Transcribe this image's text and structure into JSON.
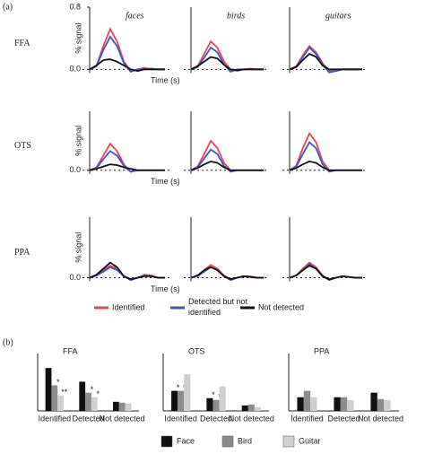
{
  "figure_labels": [
    "(a)",
    "(b)"
  ],
  "chart_data": [
    {
      "type": "line",
      "title": "faces",
      "row_label": "FFA",
      "ylabel": "% signal",
      "xlabel": "Time (s)",
      "ylim": [
        -0.1,
        0.8
      ],
      "yticks": [
        {
          "value": 0,
          "label": "0.0"
        },
        {
          "value": 0.8,
          "label": "0.8"
        }
      ],
      "series": [
        {
          "name": "Identified",
          "color": "#e8474f",
          "values": [
            0,
            0.05,
            0.3,
            0.52,
            0.36,
            0.1,
            -0.02,
            0,
            0.02,
            0,
            0,
            0
          ]
        },
        {
          "name": "Detected but not identified",
          "color": "#3a56c8",
          "values": [
            0,
            0.04,
            0.25,
            0.42,
            0.3,
            0.08,
            -0.03,
            0,
            0,
            0.01,
            0,
            0
          ]
        },
        {
          "name": "Not detected",
          "color": "#111111",
          "values": [
            0,
            0.05,
            0.12,
            0.13,
            0.1,
            0.05,
            0,
            -0.02,
            0,
            0,
            0,
            0
          ]
        }
      ]
    },
    {
      "type": "line",
      "title": "birds",
      "ylim": [
        -0.1,
        0.8
      ],
      "series": [
        {
          "color": "#e8474f",
          "values": [
            0,
            0.04,
            0.2,
            0.36,
            0.28,
            0.1,
            0,
            -0.02,
            0,
            0.01,
            0,
            0
          ]
        },
        {
          "color": "#3a56c8",
          "values": [
            0,
            0.03,
            0.15,
            0.28,
            0.22,
            0.06,
            -0.03,
            0,
            0,
            0,
            0,
            0
          ]
        },
        {
          "color": "#111111",
          "values": [
            0,
            0.04,
            0.1,
            0.16,
            0.14,
            0.06,
            0,
            -0.01,
            0,
            0,
            0,
            0
          ]
        }
      ]
    },
    {
      "type": "line",
      "title": "guitars",
      "ylim": [
        -0.1,
        0.8
      ],
      "series": [
        {
          "color": "#e8474f",
          "values": [
            0,
            0.04,
            0.18,
            0.3,
            0.22,
            0.08,
            -0.02,
            -0.02,
            0,
            0,
            0,
            0
          ]
        },
        {
          "color": "#3a56c8",
          "values": [
            0,
            0.03,
            0.16,
            0.28,
            0.2,
            0.06,
            -0.04,
            -0.02,
            0,
            0,
            0,
            0
          ]
        },
        {
          "color": "#111111",
          "values": [
            0,
            0.03,
            0.12,
            0.2,
            0.16,
            0.05,
            0,
            0,
            0,
            0,
            0,
            0
          ]
        }
      ]
    },
    {
      "type": "line",
      "row_label": "OTS",
      "ylabel": "% signal",
      "xlabel": "Time (s)",
      "ylim": [
        -0.1,
        0.8
      ],
      "yticks": [
        {
          "value": 0,
          "label": "0.0"
        }
      ],
      "series": [
        {
          "color": "#e8474f",
          "values": [
            0,
            0.04,
            0.2,
            0.36,
            0.26,
            0.08,
            -0.02,
            0,
            0,
            0,
            0,
            0
          ]
        },
        {
          "color": "#3a56c8",
          "values": [
            0,
            0.03,
            0.15,
            0.26,
            0.2,
            0.06,
            -0.02,
            0,
            0,
            0,
            0,
            0
          ]
        },
        {
          "color": "#111111",
          "values": [
            0,
            0.02,
            0.05,
            0.08,
            0.07,
            0.04,
            0.02,
            0,
            0,
            0,
            0,
            0
          ]
        }
      ]
    },
    {
      "type": "line",
      "ylim": [
        -0.1,
        0.8
      ],
      "series": [
        {
          "color": "#e8474f",
          "values": [
            0,
            0.05,
            0.22,
            0.4,
            0.3,
            0.1,
            0,
            0,
            0,
            0,
            0,
            0
          ]
        },
        {
          "color": "#3a56c8",
          "values": [
            0,
            0.04,
            0.16,
            0.28,
            0.22,
            0.06,
            -0.02,
            0,
            0,
            0,
            0,
            0
          ]
        },
        {
          "color": "#111111",
          "values": [
            0,
            0.03,
            0.08,
            0.12,
            0.1,
            0.04,
            0,
            0,
            0,
            0,
            0,
            0
          ]
        }
      ]
    },
    {
      "type": "line",
      "ylim": [
        -0.1,
        0.8
      ],
      "series": [
        {
          "color": "#e8474f",
          "values": [
            0,
            0.06,
            0.3,
            0.5,
            0.38,
            0.12,
            0,
            0,
            0,
            0,
            0,
            0
          ]
        },
        {
          "color": "#3a56c8",
          "values": [
            0,
            0.05,
            0.22,
            0.38,
            0.3,
            0.08,
            -0.02,
            0,
            0,
            0,
            0,
            0
          ]
        },
        {
          "color": "#111111",
          "values": [
            0,
            0.03,
            0.08,
            0.12,
            0.1,
            0.04,
            0,
            0,
            0,
            0,
            0,
            0
          ]
        }
      ]
    },
    {
      "type": "line",
      "row_label": "PPA",
      "ylabel": "% signal",
      "xlabel": "Time (s)",
      "ylim": [
        -0.1,
        0.8
      ],
      "yticks": [
        {
          "value": 0,
          "label": "0.0"
        }
      ],
      "series": [
        {
          "color": "#e8474f",
          "values": [
            0,
            0.03,
            0.1,
            0.16,
            0.12,
            0.02,
            -0.03,
            0,
            0.04,
            0.03,
            0,
            0
          ]
        },
        {
          "color": "#3a56c8",
          "values": [
            0,
            0.03,
            0.08,
            0.14,
            0.1,
            0.02,
            -0.03,
            0,
            0.03,
            0.02,
            0,
            0
          ]
        },
        {
          "color": "#111111",
          "values": [
            0,
            0.04,
            0.12,
            0.2,
            0.14,
            0.02,
            -0.02,
            0,
            0.02,
            0.02,
            0,
            0
          ]
        }
      ]
    },
    {
      "type": "line",
      "ylim": [
        -0.1,
        0.8
      ],
      "series": [
        {
          "color": "#e8474f",
          "values": [
            0,
            0.03,
            0.1,
            0.17,
            0.12,
            0.03,
            -0.02,
            0,
            0.02,
            0.02,
            0,
            0
          ]
        },
        {
          "color": "#3a56c8",
          "values": [
            0,
            0.02,
            0.08,
            0.14,
            0.1,
            0.02,
            -0.03,
            0,
            0.02,
            0.01,
            0,
            0
          ]
        },
        {
          "color": "#111111",
          "values": [
            0,
            0.03,
            0.1,
            0.14,
            0.1,
            0.02,
            -0.02,
            0,
            0.02,
            0.01,
            0,
            0
          ]
        }
      ]
    },
    {
      "type": "line",
      "ylim": [
        -0.1,
        0.8
      ],
      "series": [
        {
          "color": "#e8474f",
          "values": [
            0,
            0.03,
            0.12,
            0.2,
            0.14,
            0.03,
            -0.03,
            0,
            0.02,
            0.01,
            0,
            0
          ]
        },
        {
          "color": "#3a56c8",
          "values": [
            0,
            0.03,
            0.1,
            0.18,
            0.12,
            0.02,
            -0.03,
            0,
            0.02,
            0.01,
            0,
            0
          ]
        },
        {
          "color": "#111111",
          "values": [
            0,
            0.03,
            0.1,
            0.16,
            0.12,
            0.02,
            -0.02,
            0,
            0.02,
            0.01,
            0,
            0
          ]
        }
      ]
    },
    {
      "type": "bar",
      "title": "FFA",
      "categories": [
        "Identified",
        "Detected",
        "Not detected"
      ],
      "ylim": [
        0,
        0.55
      ],
      "series": [
        {
          "name": "Face",
          "color": "#111111",
          "values": [
            0.47,
            0.32,
            0.1
          ]
        },
        {
          "name": "Bird",
          "color": "#8c8c8c",
          "values": [
            0.28,
            0.2,
            0.09
          ],
          "significance": [
            "*",
            "*",
            null
          ]
        },
        {
          "name": "Guitar",
          "color": "#cfcfcf",
          "values": [
            0.17,
            0.15,
            0.08
          ],
          "significance": [
            "**",
            "*",
            null
          ]
        }
      ]
    },
    {
      "type": "bar",
      "title": "OTS",
      "categories": [
        "Identified",
        "Detected",
        "Not detected"
      ],
      "ylim": [
        0,
        0.55
      ],
      "series": [
        {
          "color": "#111111",
          "values": [
            0.22,
            0.14,
            0.06
          ],
          "significance": [
            "*",
            "*",
            null
          ]
        },
        {
          "color": "#8c8c8c",
          "values": [
            0.22,
            0.12,
            0.07
          ],
          "significance": [
            "*",
            "*",
            null
          ]
        },
        {
          "color": "#cfcfcf",
          "values": [
            0.4,
            0.27,
            0.04
          ]
        }
      ]
    },
    {
      "type": "bar",
      "title": "PPA",
      "categories": [
        "Identified",
        "Detected",
        "Not detected"
      ],
      "ylim": [
        0,
        0.55
      ],
      "series": [
        {
          "color": "#111111",
          "values": [
            0.15,
            0.15,
            0.2
          ]
        },
        {
          "color": "#8c8c8c",
          "values": [
            0.22,
            0.15,
            0.13
          ]
        },
        {
          "color": "#cfcfcf",
          "values": [
            0.15,
            0.12,
            0.12
          ]
        }
      ]
    }
  ]
}
